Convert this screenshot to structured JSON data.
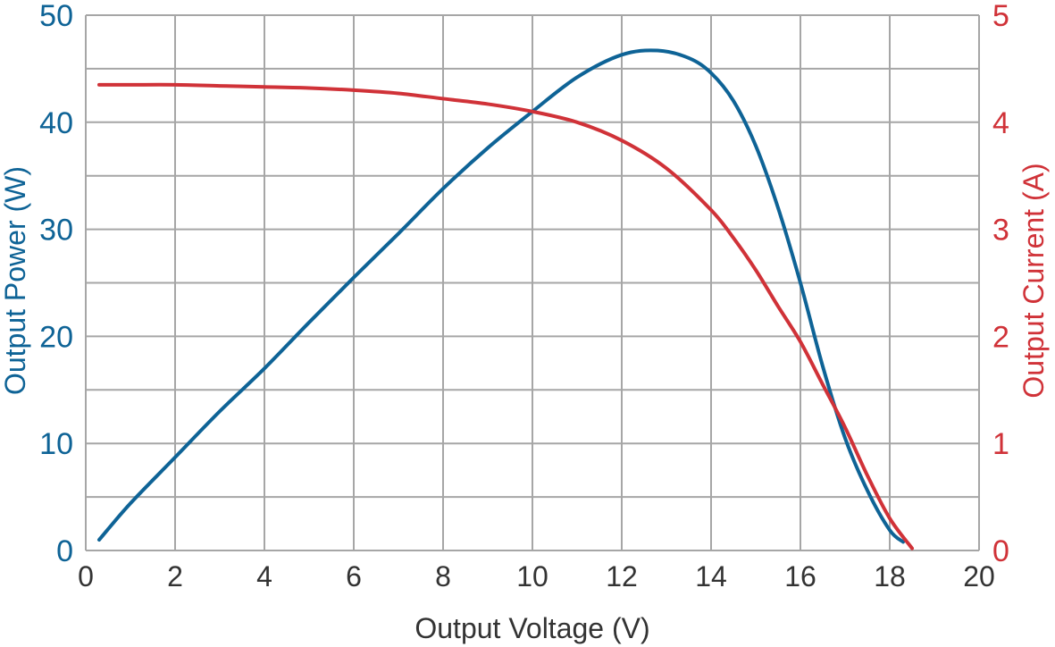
{
  "chart_data": {
    "type": "line",
    "title": "",
    "xlabel": "Output Voltage (V)",
    "ylabel_left": "Output Power (W)",
    "ylabel_right": "Output Current (A)",
    "xlim": [
      0,
      20
    ],
    "ylim_left": [
      0,
      50
    ],
    "ylim_right": [
      0,
      5
    ],
    "x_ticks": [
      "0",
      "2",
      "4",
      "6",
      "8",
      "10",
      "12",
      "14",
      "16",
      "18",
      "20"
    ],
    "y_left_ticks": [
      "0",
      "10",
      "20",
      "30",
      "40",
      "50"
    ],
    "y_right_ticks": [
      "0",
      "1",
      "2",
      "3",
      "4",
      "5"
    ],
    "grid": true,
    "colors": {
      "power": "#0e6396",
      "current": "#d03238",
      "grid": "#a6a6a6",
      "axis": "#7f7f7f"
    },
    "series": [
      {
        "axis": "left",
        "x": [
          0.3,
          1,
          2,
          3,
          4,
          5,
          6,
          7,
          8,
          9,
          10,
          11,
          12,
          12.8,
          13.5,
          14,
          14.5,
          15,
          15.5,
          16,
          16.5,
          17,
          17.5,
          18,
          18.3
        ],
        "y": [
          1.0,
          4.4,
          8.7,
          13.0,
          17.0,
          21.3,
          25.5,
          29.6,
          33.8,
          37.6,
          41.0,
          44.2,
          46.3,
          46.7,
          46.0,
          44.6,
          42.0,
          37.8,
          32.0,
          25.0,
          17.2,
          10.5,
          5.6,
          1.9,
          0.8
        ]
      },
      {
        "axis": "right",
        "x": [
          0.3,
          1,
          2,
          3,
          4,
          5,
          6,
          7,
          8,
          9,
          10,
          11,
          12,
          13,
          14,
          14.5,
          15,
          15.5,
          16,
          16.5,
          17,
          17.5,
          18,
          18.5
        ],
        "y": [
          4.35,
          4.35,
          4.35,
          4.34,
          4.33,
          4.32,
          4.3,
          4.27,
          4.22,
          4.17,
          4.1,
          4.0,
          3.83,
          3.57,
          3.18,
          2.92,
          2.62,
          2.28,
          1.95,
          1.55,
          1.15,
          0.7,
          0.3,
          0.02
        ]
      }
    ]
  }
}
